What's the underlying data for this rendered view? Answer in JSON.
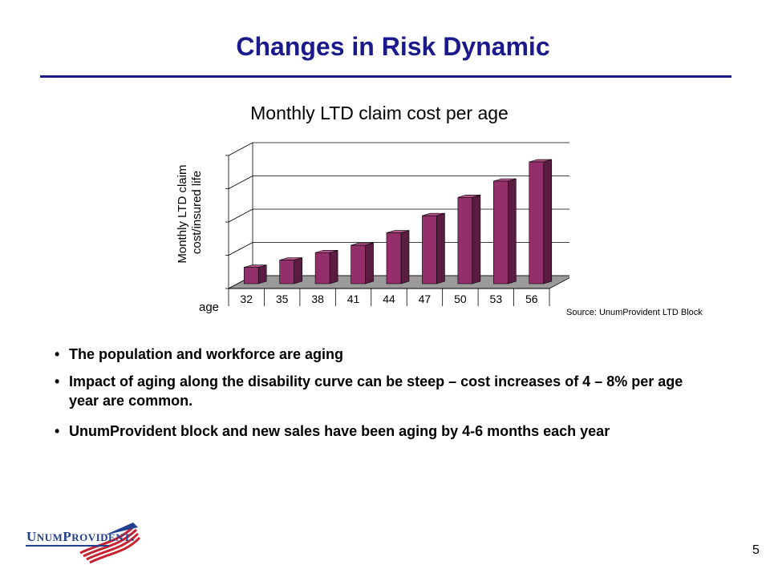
{
  "slide": {
    "title": "Changes in Risk Dynamic",
    "page_number": "5"
  },
  "chart_data": {
    "type": "bar",
    "title": "Monthly LTD claim cost per age",
    "ylabel": "Monthly LTD claim cost/insured life",
    "xlabel": "age",
    "categories": [
      "32",
      "35",
      "38",
      "41",
      "44",
      "47",
      "50",
      "53",
      "56"
    ],
    "values": [
      0.55,
      0.8,
      1.05,
      1.3,
      1.72,
      2.3,
      2.92,
      3.47,
      4.12
    ],
    "ylim": [
      0,
      4.5
    ],
    "grid": true,
    "source": "Source: UnumProvident LTD Block",
    "bar_color": "#93306b",
    "bar_side_color": "#5a1c40",
    "bar_top_color": "#b3558a"
  },
  "bullets": [
    "The population and workforce are aging",
    "Impact of aging along the disability curve can be steep – cost increases of 4 – 8% per age year are common.",
    "UnumProvident block and new sales have been aging by 4-6 months each year"
  ],
  "logo": {
    "text": "UNUMPROVIDENT",
    "brand_color": "#1f3f8f",
    "accent_color": "#c8202e"
  },
  "colors": {
    "title": "#1a1a8c"
  }
}
